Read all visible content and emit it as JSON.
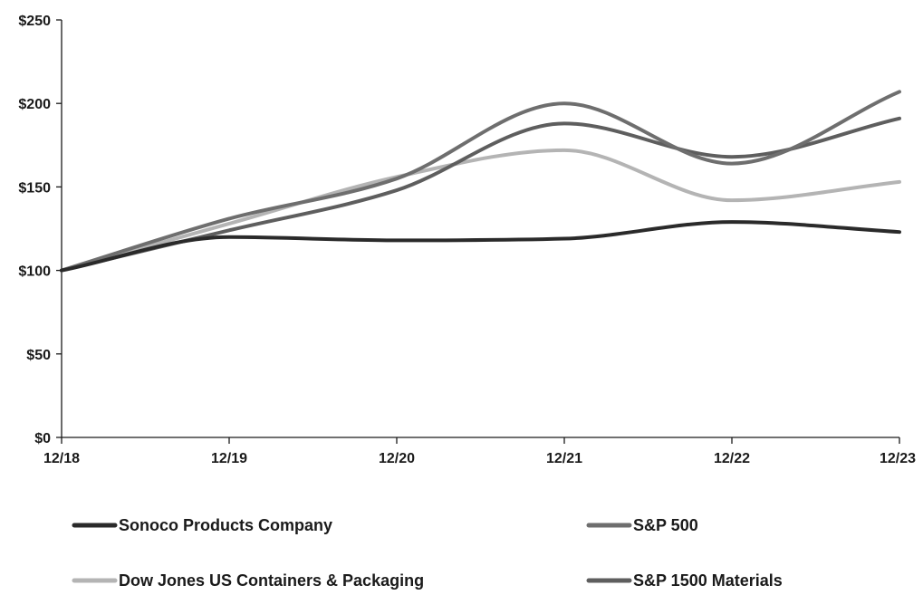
{
  "chart_data": {
    "type": "line",
    "title": "",
    "xlabel": "",
    "ylabel": "",
    "categories": [
      "12/18",
      "12/19",
      "12/20",
      "12/21",
      "12/22",
      "12/23"
    ],
    "ylim": [
      0,
      250
    ],
    "yticks": [
      0,
      50,
      100,
      150,
      200,
      250
    ],
    "ytick_labels": [
      "$0",
      "$50",
      "$100",
      "$150",
      "$200",
      "$250"
    ],
    "grid": false,
    "legend_position": "bottom",
    "series": [
      {
        "name": "Sonoco Products Company",
        "color": "#2a2a2a",
        "values": [
          100,
          120,
          118,
          119,
          129,
          123
        ]
      },
      {
        "name": "Dow Jones US Containers & Packaging",
        "color": "#b4b4b4",
        "values": [
          100,
          128,
          156,
          172,
          142,
          153
        ]
      },
      {
        "name": "S&P 500",
        "color": "#6e6e6e",
        "values": [
          100,
          131,
          155,
          200,
          164,
          207
        ]
      },
      {
        "name": "S&P 1500 Materials",
        "color": "#5e5e5e",
        "values": [
          100,
          124,
          148,
          188,
          168,
          191
        ]
      }
    ]
  }
}
